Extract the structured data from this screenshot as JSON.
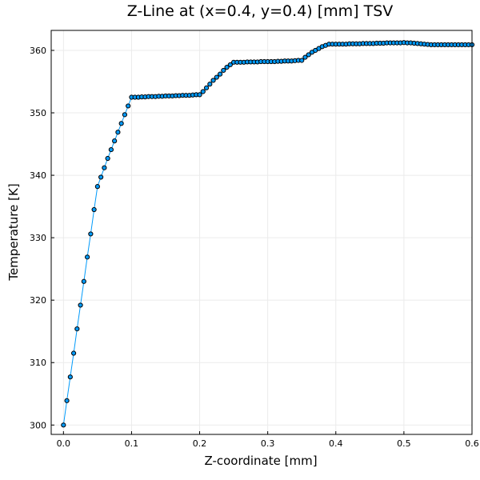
{
  "chart_data": {
    "type": "line",
    "title": "Z-Line at (x=0.4, y=0.4) [mm] TSV",
    "xlabel": "Z-coordinate [mm]",
    "ylabel": "Temperature [K]",
    "xlim": [
      -0.018,
      0.6
    ],
    "ylim": [
      298.5,
      363.2
    ],
    "xticks": [
      0.0,
      0.1,
      0.2,
      0.3,
      0.4,
      0.5,
      0.6
    ],
    "xtick_labels": [
      "0.0",
      "0.1",
      "0.2",
      "0.3",
      "0.4",
      "0.5",
      "0.6"
    ],
    "yticks": [
      300,
      310,
      320,
      330,
      340,
      350,
      360
    ],
    "ytick_labels": [
      "300",
      "310",
      "320",
      "330",
      "340",
      "350",
      "360"
    ],
    "grid": true,
    "legend": false,
    "colors": {
      "series": "#009AFA",
      "marker": "#009AFA",
      "marker_edge": "#000000"
    },
    "series": [
      {
        "x": [
          0.0,
          0.005,
          0.01,
          0.015,
          0.02,
          0.025,
          0.03,
          0.035,
          0.04,
          0.045,
          0.05,
          0.055,
          0.06,
          0.065,
          0.07,
          0.075,
          0.08,
          0.085,
          0.09,
          0.095,
          0.1,
          0.105,
          0.11,
          0.115,
          0.12,
          0.125,
          0.13,
          0.135,
          0.14,
          0.145,
          0.15,
          0.155,
          0.16,
          0.165,
          0.17,
          0.175,
          0.18,
          0.185,
          0.19,
          0.195,
          0.2,
          0.205,
          0.21,
          0.215,
          0.22,
          0.225,
          0.23,
          0.235,
          0.24,
          0.245,
          0.25,
          0.255,
          0.26,
          0.265,
          0.27,
          0.275,
          0.28,
          0.285,
          0.29,
          0.295,
          0.3,
          0.305,
          0.31,
          0.315,
          0.32,
          0.325,
          0.33,
          0.335,
          0.34,
          0.345,
          0.35,
          0.355,
          0.36,
          0.365,
          0.37,
          0.375,
          0.38,
          0.385,
          0.39,
          0.395,
          0.4,
          0.405,
          0.41,
          0.415,
          0.42,
          0.425,
          0.43,
          0.435,
          0.44,
          0.445,
          0.45,
          0.455,
          0.46,
          0.465,
          0.47,
          0.475,
          0.48,
          0.485,
          0.49,
          0.495,
          0.5,
          0.505,
          0.51,
          0.515,
          0.52,
          0.525,
          0.53,
          0.535,
          0.54,
          0.545,
          0.55,
          0.555,
          0.56,
          0.565,
          0.57,
          0.575,
          0.58,
          0.585,
          0.59,
          0.595,
          0.6
        ],
        "y": [
          300.0,
          303.9,
          307.7,
          311.5,
          315.4,
          319.2,
          323.0,
          326.9,
          330.6,
          334.5,
          338.2,
          339.7,
          341.2,
          342.7,
          344.1,
          345.5,
          346.9,
          348.3,
          349.7,
          351.1,
          352.5,
          352.5,
          352.5,
          352.55,
          352.55,
          352.6,
          352.6,
          352.6,
          352.65,
          352.65,
          352.7,
          352.7,
          352.7,
          352.75,
          352.75,
          352.8,
          352.8,
          352.8,
          352.85,
          352.9,
          352.9,
          353.4,
          354.0,
          354.6,
          355.2,
          355.7,
          356.2,
          356.8,
          357.3,
          357.7,
          358.1,
          358.1,
          358.1,
          358.1,
          358.15,
          358.15,
          358.15,
          358.15,
          358.2,
          358.2,
          358.2,
          358.2,
          358.2,
          358.25,
          358.25,
          358.3,
          358.3,
          358.3,
          358.35,
          358.4,
          358.4,
          358.9,
          359.3,
          359.7,
          360.0,
          360.3,
          360.6,
          360.8,
          361.0,
          361.0,
          361.0,
          361.0,
          361.0,
          361.0,
          361.05,
          361.05,
          361.05,
          361.05,
          361.1,
          361.1,
          361.1,
          361.1,
          361.15,
          361.15,
          361.15,
          361.2,
          361.2,
          361.2,
          361.2,
          361.2,
          361.25,
          361.2,
          361.2,
          361.15,
          361.1,
          361.05,
          361.0,
          360.95,
          360.9,
          360.9,
          360.9,
          360.9,
          360.9,
          360.9,
          360.9,
          360.9,
          360.9,
          360.9,
          360.9,
          360.9,
          360.9
        ]
      }
    ]
  }
}
